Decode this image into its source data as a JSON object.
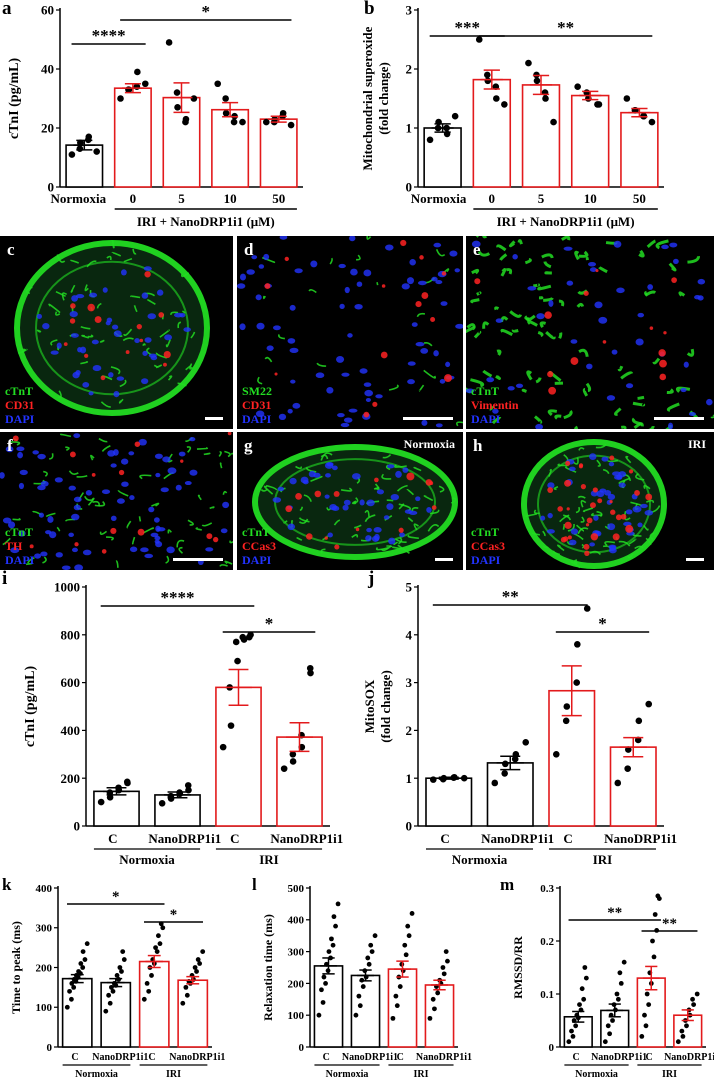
{
  "colors": {
    "normoxia": "#000000",
    "iri": "#e31a1c",
    "ctnt": "#22dd22",
    "red_stain": "#ff2222",
    "dapi": "#2233ff",
    "scale_bar": "#ffffff"
  },
  "chart_data": [
    {
      "panel": "a",
      "type": "bar",
      "categories": [
        "Normoxia",
        "0",
        "5",
        "10",
        "50"
      ],
      "series": [
        {
          "values": [
            14.2,
            33.5,
            30.3,
            26.2,
            23.0
          ],
          "errors": [
            1.6,
            1.5,
            5.0,
            2.4,
            1.0
          ]
        }
      ],
      "points": [
        [
          11,
          13,
          15,
          16,
          17,
          12
        ],
        [
          30,
          33,
          33,
          34,
          39,
          35
        ],
        [
          49,
          32,
          27,
          22,
          23,
          30
        ],
        [
          35,
          30,
          25,
          22,
          24,
          22
        ],
        [
          22,
          22,
          23,
          24,
          25,
          21
        ]
      ],
      "bar_colors": [
        "#000000",
        "#e31a1c",
        "#e31a1c",
        "#e31a1c",
        "#e31a1c"
      ],
      "ylabel": "cTnI (pg/mL)",
      "ylim": [
        0,
        60
      ],
      "yticks": [
        0,
        20,
        40,
        60
      ],
      "group_label": "IRI + NanoDRP1i1 (μM)",
      "significance": [
        {
          "label": "****",
          "from": 0,
          "to": 1
        },
        {
          "label": "*",
          "from": 1,
          "to": 4
        }
      ]
    },
    {
      "panel": "b",
      "type": "bar",
      "categories": [
        "Normoxia",
        "0",
        "5",
        "10",
        "50"
      ],
      "series": [
        {
          "values": [
            1.0,
            1.82,
            1.73,
            1.55,
            1.26
          ],
          "errors": [
            0.07,
            0.16,
            0.16,
            0.07,
            0.07
          ]
        }
      ],
      "points": [
        [
          0.8,
          1.0,
          1.1,
          1.0,
          0.9,
          1.2
        ],
        [
          2.5,
          1.9,
          1.8,
          1.7,
          1.5,
          1.4
        ],
        [
          2.1,
          1.9,
          1.8,
          1.6,
          1.5,
          1.1
        ],
        [
          1.7,
          1.6,
          1.5,
          1.4,
          1.4
        ],
        [
          1.5,
          1.3,
          1.3,
          1.2,
          1.2,
          1.1
        ]
      ],
      "bar_colors": [
        "#000000",
        "#e31a1c",
        "#e31a1c",
        "#e31a1c",
        "#e31a1c"
      ],
      "ylabel": "Mitochondrial superoxide (fold change)",
      "ylim": [
        0,
        3
      ],
      "yticks": [
        0,
        1,
        2,
        3
      ],
      "group_label": "IRI + NanoDRP1i1 (μM)",
      "significance": [
        {
          "label": "***",
          "from": 0,
          "to": 1
        },
        {
          "label": "**",
          "from": 1,
          "to": 4
        }
      ]
    },
    {
      "panel": "i",
      "type": "bar",
      "categories": [
        "C",
        "NanoDRP1i1",
        "C",
        "NanoDRP1i1"
      ],
      "groups": [
        {
          "label": "Normoxia",
          "span": [
            0,
            1
          ]
        },
        {
          "label": "IRI",
          "span": [
            2,
            3
          ]
        }
      ],
      "series": [
        {
          "values": [
            145,
            130,
            580,
            372
          ],
          "errors": [
            15,
            12,
            75,
            60
          ]
        }
      ],
      "points": [
        [
          100,
          120,
          140,
          150,
          160,
          180,
          185
        ],
        [
          95,
          115,
          125,
          135,
          140,
          150,
          170
        ],
        [
          330,
          420,
          580,
          690,
          770,
          780,
          790,
          800,
          790
        ],
        [
          240,
          270,
          300,
          330,
          380,
          640,
          660
        ]
      ],
      "bar_colors": [
        "#000000",
        "#000000",
        "#e31a1c",
        "#e31a1c"
      ],
      "ylabel": "cTnI (pg/mL)",
      "ylim": [
        0,
        1000
      ],
      "yticks": [
        0,
        200,
        400,
        600,
        800,
        1000
      ],
      "significance": [
        {
          "label": "****",
          "from": 0,
          "to": 2
        },
        {
          "label": "*",
          "from": 2,
          "to": 3
        }
      ]
    },
    {
      "panel": "j",
      "type": "bar",
      "categories": [
        "C",
        "NanoDRP1i1",
        "C",
        "NanoDRP1i1"
      ],
      "groups": [
        {
          "label": "Normoxia",
          "span": [
            0,
            1
          ]
        },
        {
          "label": "IRI",
          "span": [
            2,
            3
          ]
        }
      ],
      "series": [
        {
          "values": [
            1.0,
            1.32,
            2.83,
            1.65
          ],
          "errors": [
            0.02,
            0.14,
            0.52,
            0.2
          ]
        }
      ],
      "points": [
        [
          0.97,
          0.98,
          1.0,
          1.01,
          1.02,
          1.0
        ],
        [
          0.9,
          1.1,
          1.3,
          1.4,
          1.5,
          1.75
        ],
        [
          1.5,
          2.2,
          2.5,
          3.0,
          3.8,
          4.55
        ],
        [
          0.9,
          1.2,
          1.6,
          1.8,
          2.2,
          2.55
        ]
      ],
      "bar_colors": [
        "#000000",
        "#000000",
        "#e31a1c",
        "#e31a1c"
      ],
      "ylabel": "MitoSOX (fold change)",
      "ylim": [
        0,
        5
      ],
      "yticks": [
        0,
        1,
        2,
        3,
        4,
        5
      ],
      "significance": [
        {
          "label": "**",
          "from": 0,
          "to": 2
        },
        {
          "label": "*",
          "from": 2,
          "to": 3
        }
      ]
    },
    {
      "panel": "k",
      "type": "bar",
      "categories": [
        "C",
        "NanoDRP1i1",
        "C",
        "NanoDRP1i1"
      ],
      "groups": [
        {
          "label": "Normoxia",
          "span": [
            0,
            1
          ]
        },
        {
          "label": "IRI",
          "span": [
            2,
            3
          ]
        }
      ],
      "series": [
        {
          "values": [
            172,
            162,
            215,
            168
          ],
          "errors": [
            10,
            10,
            15,
            9
          ]
        }
      ],
      "points": [
        [
          100,
          120,
          140,
          150,
          160,
          165,
          170,
          175,
          180,
          185,
          190,
          200,
          210,
          220,
          240,
          260
        ],
        [
          90,
          110,
          130,
          140,
          150,
          155,
          160,
          170,
          180,
          190,
          200,
          220,
          240
        ],
        [
          120,
          140,
          160,
          180,
          200,
          210,
          220,
          240,
          250,
          260,
          280,
          300,
          310
        ],
        [
          110,
          130,
          150,
          160,
          165,
          170,
          180,
          190,
          200,
          210,
          220,
          240
        ]
      ],
      "bar_colors": [
        "#000000",
        "#000000",
        "#e31a1c",
        "#e31a1c"
      ],
      "ylabel": "Time to peak (ms)",
      "ylim": [
        0,
        400
      ],
      "yticks": [
        0,
        100,
        200,
        300,
        400
      ],
      "significance": [
        {
          "label": "*",
          "from": 0,
          "to": 2
        },
        {
          "label": "*",
          "from": 2,
          "to": 3
        }
      ]
    },
    {
      "panel": "l",
      "type": "bar",
      "categories": [
        "C",
        "NanoDRP1i1",
        "C",
        "NanoDRP1i1"
      ],
      "groups": [
        {
          "label": "Normoxia",
          "span": [
            0,
            1
          ]
        },
        {
          "label": "IRI",
          "span": [
            2,
            3
          ]
        }
      ],
      "series": [
        {
          "values": [
            255,
            225,
            245,
            195
          ],
          "errors": [
            25,
            17,
            25,
            15
          ]
        }
      ],
      "points": [
        [
          100,
          140,
          180,
          200,
          220,
          240,
          260,
          280,
          300,
          320,
          340,
          380,
          410,
          450
        ],
        [
          100,
          130,
          160,
          190,
          210,
          220,
          240,
          260,
          280,
          300,
          320,
          350
        ],
        [
          90,
          130,
          160,
          190,
          220,
          240,
          260,
          290,
          320,
          350,
          380,
          420
        ],
        [
          90,
          120,
          150,
          170,
          190,
          200,
          210,
          230,
          250,
          270,
          300
        ]
      ],
      "bar_colors": [
        "#000000",
        "#000000",
        "#e31a1c",
        "#e31a1c"
      ],
      "ylabel": "Relaxation time (ms)",
      "ylim": [
        0,
        500
      ],
      "yticks": [
        0,
        100,
        200,
        300,
        400,
        500
      ],
      "significance": []
    },
    {
      "panel": "m",
      "type": "bar",
      "categories": [
        "C",
        "NanoDRP1i1",
        "C",
        "NanoDRP1i1"
      ],
      "groups": [
        {
          "label": "Normoxia",
          "span": [
            0,
            1
          ]
        },
        {
          "label": "IRI",
          "span": [
            2,
            3
          ]
        }
      ],
      "series": [
        {
          "values": [
            0.057,
            0.069,
            0.13,
            0.06
          ],
          "errors": [
            0.01,
            0.012,
            0.022,
            0.01
          ]
        }
      ],
      "points": [
        [
          0.01,
          0.02,
          0.03,
          0.04,
          0.05,
          0.055,
          0.06,
          0.07,
          0.08,
          0.09,
          0.11,
          0.13,
          0.15
        ],
        [
          0.01,
          0.025,
          0.04,
          0.05,
          0.06,
          0.07,
          0.08,
          0.09,
          0.1,
          0.12,
          0.14,
          0.16
        ],
        [
          0.02,
          0.04,
          0.06,
          0.08,
          0.1,
          0.12,
          0.14,
          0.17,
          0.2,
          0.22,
          0.25,
          0.28,
          0.285
        ],
        [
          0.01,
          0.02,
          0.03,
          0.04,
          0.05,
          0.06,
          0.07,
          0.08,
          0.09,
          0.1
        ]
      ],
      "bar_colors": [
        "#000000",
        "#000000",
        "#e31a1c",
        "#e31a1c"
      ],
      "ylabel": "RMSSD/RR",
      "ylim": [
        0,
        0.3
      ],
      "yticks": [
        0.0,
        0.1,
        0.2,
        0.3
      ],
      "significance": [
        {
          "label": "**",
          "from": 0,
          "to": 2
        },
        {
          "label": "**",
          "from": 2,
          "to": 3
        }
      ]
    }
  ],
  "micrographs": [
    {
      "panel": "c",
      "labels": [
        {
          "text": "cTnT",
          "color": "#22dd22"
        },
        {
          "text": "CD31",
          "color": "#ff2222"
        },
        {
          "text": "DAPI",
          "color": "#2233ff"
        }
      ],
      "title": ""
    },
    {
      "panel": "d",
      "labels": [
        {
          "text": "SM22",
          "color": "#22dd22"
        },
        {
          "text": "CD31",
          "color": "#ff2222"
        },
        {
          "text": "DAPI",
          "color": "#2233ff"
        }
      ],
      "title": ""
    },
    {
      "panel": "e",
      "labels": [
        {
          "text": "cTnT",
          "color": "#22dd22"
        },
        {
          "text": "Vimentin",
          "color": "#ff2222"
        },
        {
          "text": "DAPI",
          "color": "#2233ff"
        }
      ],
      "title": ""
    },
    {
      "panel": "f",
      "labels": [
        {
          "text": "cTnT",
          "color": "#22dd22"
        },
        {
          "text": "TH",
          "color": "#ff2222"
        },
        {
          "text": "DAPI",
          "color": "#2233ff"
        }
      ],
      "title": ""
    },
    {
      "panel": "g",
      "labels": [
        {
          "text": "cTnT",
          "color": "#22dd22"
        },
        {
          "text": "CCas3",
          "color": "#ff2222"
        },
        {
          "text": "DAPI",
          "color": "#2233ff"
        }
      ],
      "title": "Normoxia"
    },
    {
      "panel": "h",
      "labels": [
        {
          "text": "cTnT",
          "color": "#22dd22"
        },
        {
          "text": "CCas3",
          "color": "#ff2222"
        },
        {
          "text": "DAPI",
          "color": "#2233ff"
        }
      ],
      "title": "IRI"
    }
  ]
}
